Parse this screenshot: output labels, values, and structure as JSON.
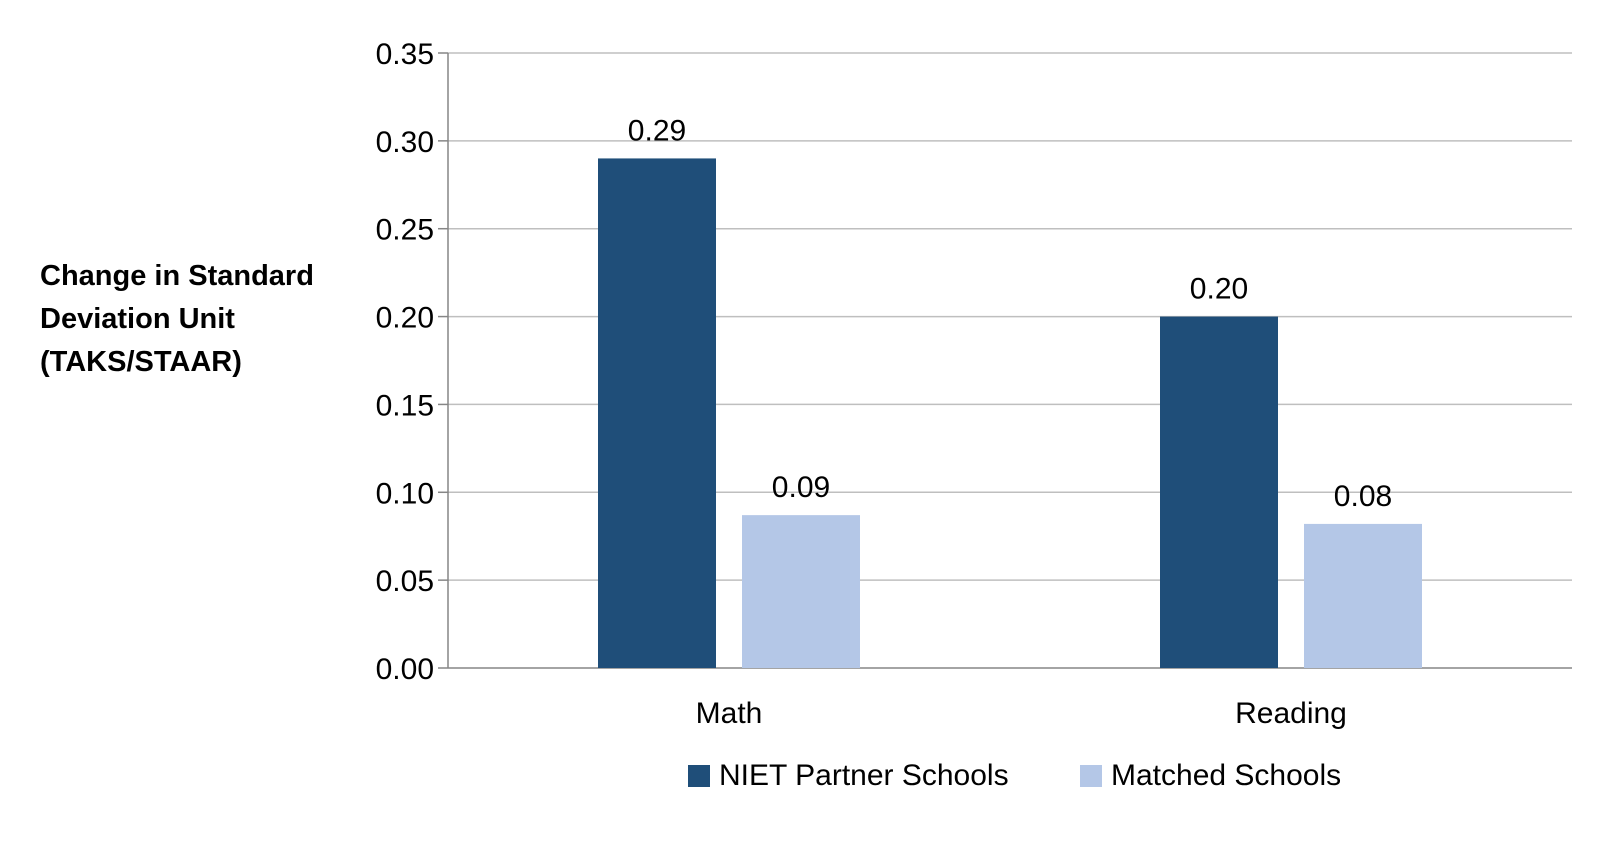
{
  "chart_data": {
    "type": "bar",
    "categories": [
      "Math",
      "Reading"
    ],
    "series": [
      {
        "name": "NIET Partner Schools",
        "values": [
          0.29,
          0.2
        ],
        "labels": [
          "0.29",
          "0.20"
        ],
        "color": "#1f4e79"
      },
      {
        "name": "Matched Schools",
        "values": [
          0.087,
          0.082
        ],
        "labels": [
          "0.09",
          "0.08"
        ],
        "color": "#b4c7e7"
      }
    ],
    "ylabel_lines": [
      "Change in Standard",
      "Deviation Unit",
      "(TAKS/STAAR)"
    ],
    "xlabel": "",
    "ylim": [
      0,
      0.35
    ],
    "yticks": [
      "0.00",
      "0.05",
      "0.10",
      "0.15",
      "0.20",
      "0.25",
      "0.30",
      "0.35"
    ],
    "ytick_values": [
      0,
      0.05,
      0.1,
      0.15,
      0.2,
      0.25,
      0.3,
      0.35
    ],
    "grid": true,
    "legend_position": "bottom"
  }
}
